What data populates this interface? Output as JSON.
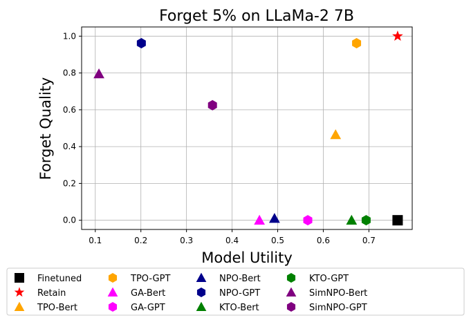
{
  "chart_data": {
    "type": "scatter",
    "title": "Forget 5% on LLaMa-2 7B",
    "xlabel": "Model Utility",
    "ylabel": "Forget Quality",
    "xlim": [
      0.07,
      0.795
    ],
    "ylim": [
      -0.05,
      1.05
    ],
    "xticks": [
      0.1,
      0.2,
      0.3,
      0.4,
      0.5,
      0.6,
      0.7
    ],
    "yticks": [
      0.0,
      0.2,
      0.4,
      0.6,
      0.8,
      1.0
    ],
    "xtick_labels": [
      "0.1",
      "0.2",
      "0.3",
      "0.4",
      "0.5",
      "0.6",
      "0.7"
    ],
    "ytick_labels": [
      "0.0",
      "0.2",
      "0.4",
      "0.6",
      "0.8",
      "1.0"
    ],
    "grid": true,
    "legend_position": "below-plot",
    "series": [
      {
        "name": "Finetuned",
        "marker": "square",
        "color": "#000000",
        "x": 0.763,
        "y": 0.0
      },
      {
        "name": "Retain",
        "marker": "star",
        "color": "#ff0000",
        "x": 0.763,
        "y": 1.0
      },
      {
        "name": "TPO-Bert",
        "marker": "triangle",
        "color": "#ffa500",
        "x": 0.627,
        "y": 0.465
      },
      {
        "name": "TPO-GPT",
        "marker": "hexagon",
        "color": "#ffa500",
        "x": 0.673,
        "y": 0.962
      },
      {
        "name": "GA-Bert",
        "marker": "triangle",
        "color": "#ff00ff",
        "x": 0.46,
        "y": 0.0
      },
      {
        "name": "GA-GPT",
        "marker": "hexagon",
        "color": "#ff00ff",
        "x": 0.566,
        "y": 0.0
      },
      {
        "name": "NPO-Bert",
        "marker": "triangle",
        "color": "#00008b",
        "x": 0.493,
        "y": 0.01
      },
      {
        "name": "NPO-GPT",
        "marker": "hexagon",
        "color": "#00008b",
        "x": 0.201,
        "y": 0.962
      },
      {
        "name": "KTO-Bert",
        "marker": "triangle",
        "color": "#008000",
        "x": 0.662,
        "y": 0.0
      },
      {
        "name": "KTO-GPT",
        "marker": "hexagon",
        "color": "#008000",
        "x": 0.694,
        "y": 0.0
      },
      {
        "name": "SimNPO-Bert",
        "marker": "triangle",
        "color": "#800080",
        "x": 0.108,
        "y": 0.795
      },
      {
        "name": "SimNPO-GPT",
        "marker": "hexagon",
        "color": "#800080",
        "x": 0.357,
        "y": 0.625
      }
    ]
  }
}
